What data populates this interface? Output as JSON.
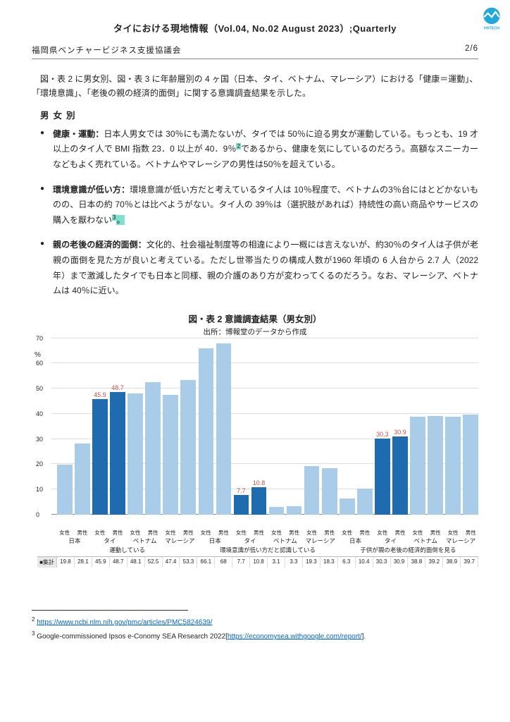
{
  "header": {
    "title": "タイにおける現地情報（Vol.04, No.02  August 2023）;Quarterly",
    "org": "福岡県ベンチャービジネス支援協議会",
    "page": "2/6"
  },
  "intro": "図・表 2 に男女別、図・表 3 に年齢層別の 4 ヶ国（日本、タイ、ベトナム、マレーシア）における「健康＝運動」、「環境意識」、「老後の親の経済的面倒」に関する意識調査結果を示した。",
  "section_label": "男女別",
  "bullets": [
    {
      "head": "健康・運動：",
      "body_a": "日本人男女では 30％にも満たないが、タイでは 50％に迫る男女が運動している。もっとも、19 才以上のタイ人で BMI 指数 23．0 以上が 40．9％",
      "sup": "2",
      "body_b": "であるから、健康を気にしているのだろう。高額なスニーカーなどもよく売れている。ベトナムやマレーシアの男性は50％を超えている。"
    },
    {
      "head": "環境意識が低い方：",
      "body_a": "環境意識が低い方だと考えているタイ人は 10％程度で、ベトナムの3％台にはとどかないものの、日本の約 70％とは比べようがない。タイ人の 39％は（選択肢があれば）持続性の高い商品やサービスの購入を厭わない",
      "sup": "3",
      "body_b": "。"
    },
    {
      "head": "親の老後の経済的面倒：",
      "body_a": "文化的、社会福祉制度等の相違により一概には言えないが、約30％のタイ人は子供が老親の面倒を見た方が良いと考えている。ただし世帯当たりの構成人数が1960 年頃の 6 人台から 2.7 人（2022 年）まで激減したタイでも日本と同様、親の介護のあり方が変わってくるのだろう。なお、マレーシア、ベトナムは 40％に近い。",
      "sup": "",
      "body_b": ""
    }
  ],
  "chart": {
    "title": "図・表 2 意識調査結果（男女別）",
    "source": "出所：博報堂のデータから作成",
    "ylabel": "%",
    "ymax": 70,
    "ytick_step": 10,
    "light_color": "#a9cce8",
    "dark_color": "#1f6bb0",
    "label_color_light": "#555555",
    "label_color_dark": "#c0504d",
    "genders": [
      "女性",
      "男性"
    ],
    "countries": [
      "日本",
      "タイ",
      "ベトナム",
      "マレーシア"
    ],
    "groups": [
      "運動している",
      "環境意識が低い方だと認識している",
      "子供が親の老後の経済的面倒を見る"
    ],
    "bars": [
      {
        "v": 19.8,
        "hi": false
      },
      {
        "v": 28.1,
        "hi": false
      },
      {
        "v": 45.9,
        "hi": true,
        "lbl": "45.9"
      },
      {
        "v": 48.7,
        "hi": true,
        "lbl": "48.7"
      },
      {
        "v": 48.1,
        "hi": false
      },
      {
        "v": 52.5,
        "hi": false
      },
      {
        "v": 47.4,
        "hi": false
      },
      {
        "v": 53.3,
        "hi": false
      },
      {
        "v": 66.1,
        "hi": false
      },
      {
        "v": 68,
        "hi": false
      },
      {
        "v": 7.7,
        "hi": true,
        "lbl": "7.7"
      },
      {
        "v": 10.8,
        "hi": true,
        "lbl": "10.8"
      },
      {
        "v": 3.1,
        "hi": false
      },
      {
        "v": 3.3,
        "hi": false
      },
      {
        "v": 19.3,
        "hi": false
      },
      {
        "v": 18.3,
        "hi": false
      },
      {
        "v": 6.3,
        "hi": false
      },
      {
        "v": 10.4,
        "hi": false
      },
      {
        "v": 30.3,
        "hi": true,
        "lbl": "30.3"
      },
      {
        "v": 30.9,
        "hi": true,
        "lbl": "30.9"
      },
      {
        "v": 38.8,
        "hi": false
      },
      {
        "v": 39.2,
        "hi": false
      },
      {
        "v": 38.9,
        "hi": false
      },
      {
        "v": 39.7,
        "hi": false
      }
    ],
    "table_header": "■集計",
    "table_values": [
      "19.8",
      "28.1",
      "45.9",
      "48.7",
      "48.1",
      "52.5",
      "47.4",
      "53.3",
      "66.1",
      "68",
      "7.7",
      "10.8",
      "3.1",
      "3.3",
      "19.3",
      "18.3",
      "6.3",
      "10.4",
      "30.3",
      "30.9",
      "38.8",
      "39.2",
      "38.9",
      "39.7"
    ]
  },
  "footnotes": [
    {
      "n": "2",
      "text": "",
      "link": "https://www.ncbi.nlm.nih.gov/pmc/articles/PMC5824639/"
    },
    {
      "n": "3",
      "text": "Google-commissioned Ipsos e-Conomy SEA Research 2022[",
      "link": "https://economysea.withgoogle.com/report/",
      "tail": "]."
    }
  ]
}
